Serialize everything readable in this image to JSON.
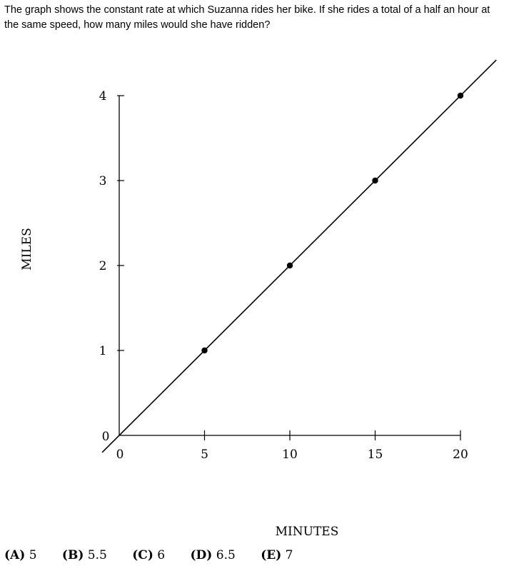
{
  "question": {
    "text": "The graph shows the constant rate at which Suzanna rides her bike. If she rides a total of a half an hour at the same speed, how many miles would she have ridden?"
  },
  "chart_data": {
    "type": "line",
    "title": "",
    "xlabel": "MINUTES",
    "ylabel": "MILES",
    "xlim": [
      0,
      20
    ],
    "ylim": [
      0,
      4
    ],
    "x_ticks": [
      5,
      10,
      15,
      20
    ],
    "y_ticks": [
      1,
      2,
      3,
      4
    ],
    "origin_x_label": "0",
    "origin_y_label": "0",
    "grid": false,
    "series": [
      {
        "x": [
          5,
          10,
          15,
          20
        ],
        "y": [
          1,
          2,
          3,
          4
        ]
      }
    ]
  },
  "choices": [
    {
      "letter": "(A)",
      "value": "5"
    },
    {
      "letter": "(B)",
      "value": "5.5"
    },
    {
      "letter": "(C)",
      "value": "6"
    },
    {
      "letter": "(D)",
      "value": "6.5"
    },
    {
      "letter": "(E)",
      "value": "7"
    }
  ]
}
